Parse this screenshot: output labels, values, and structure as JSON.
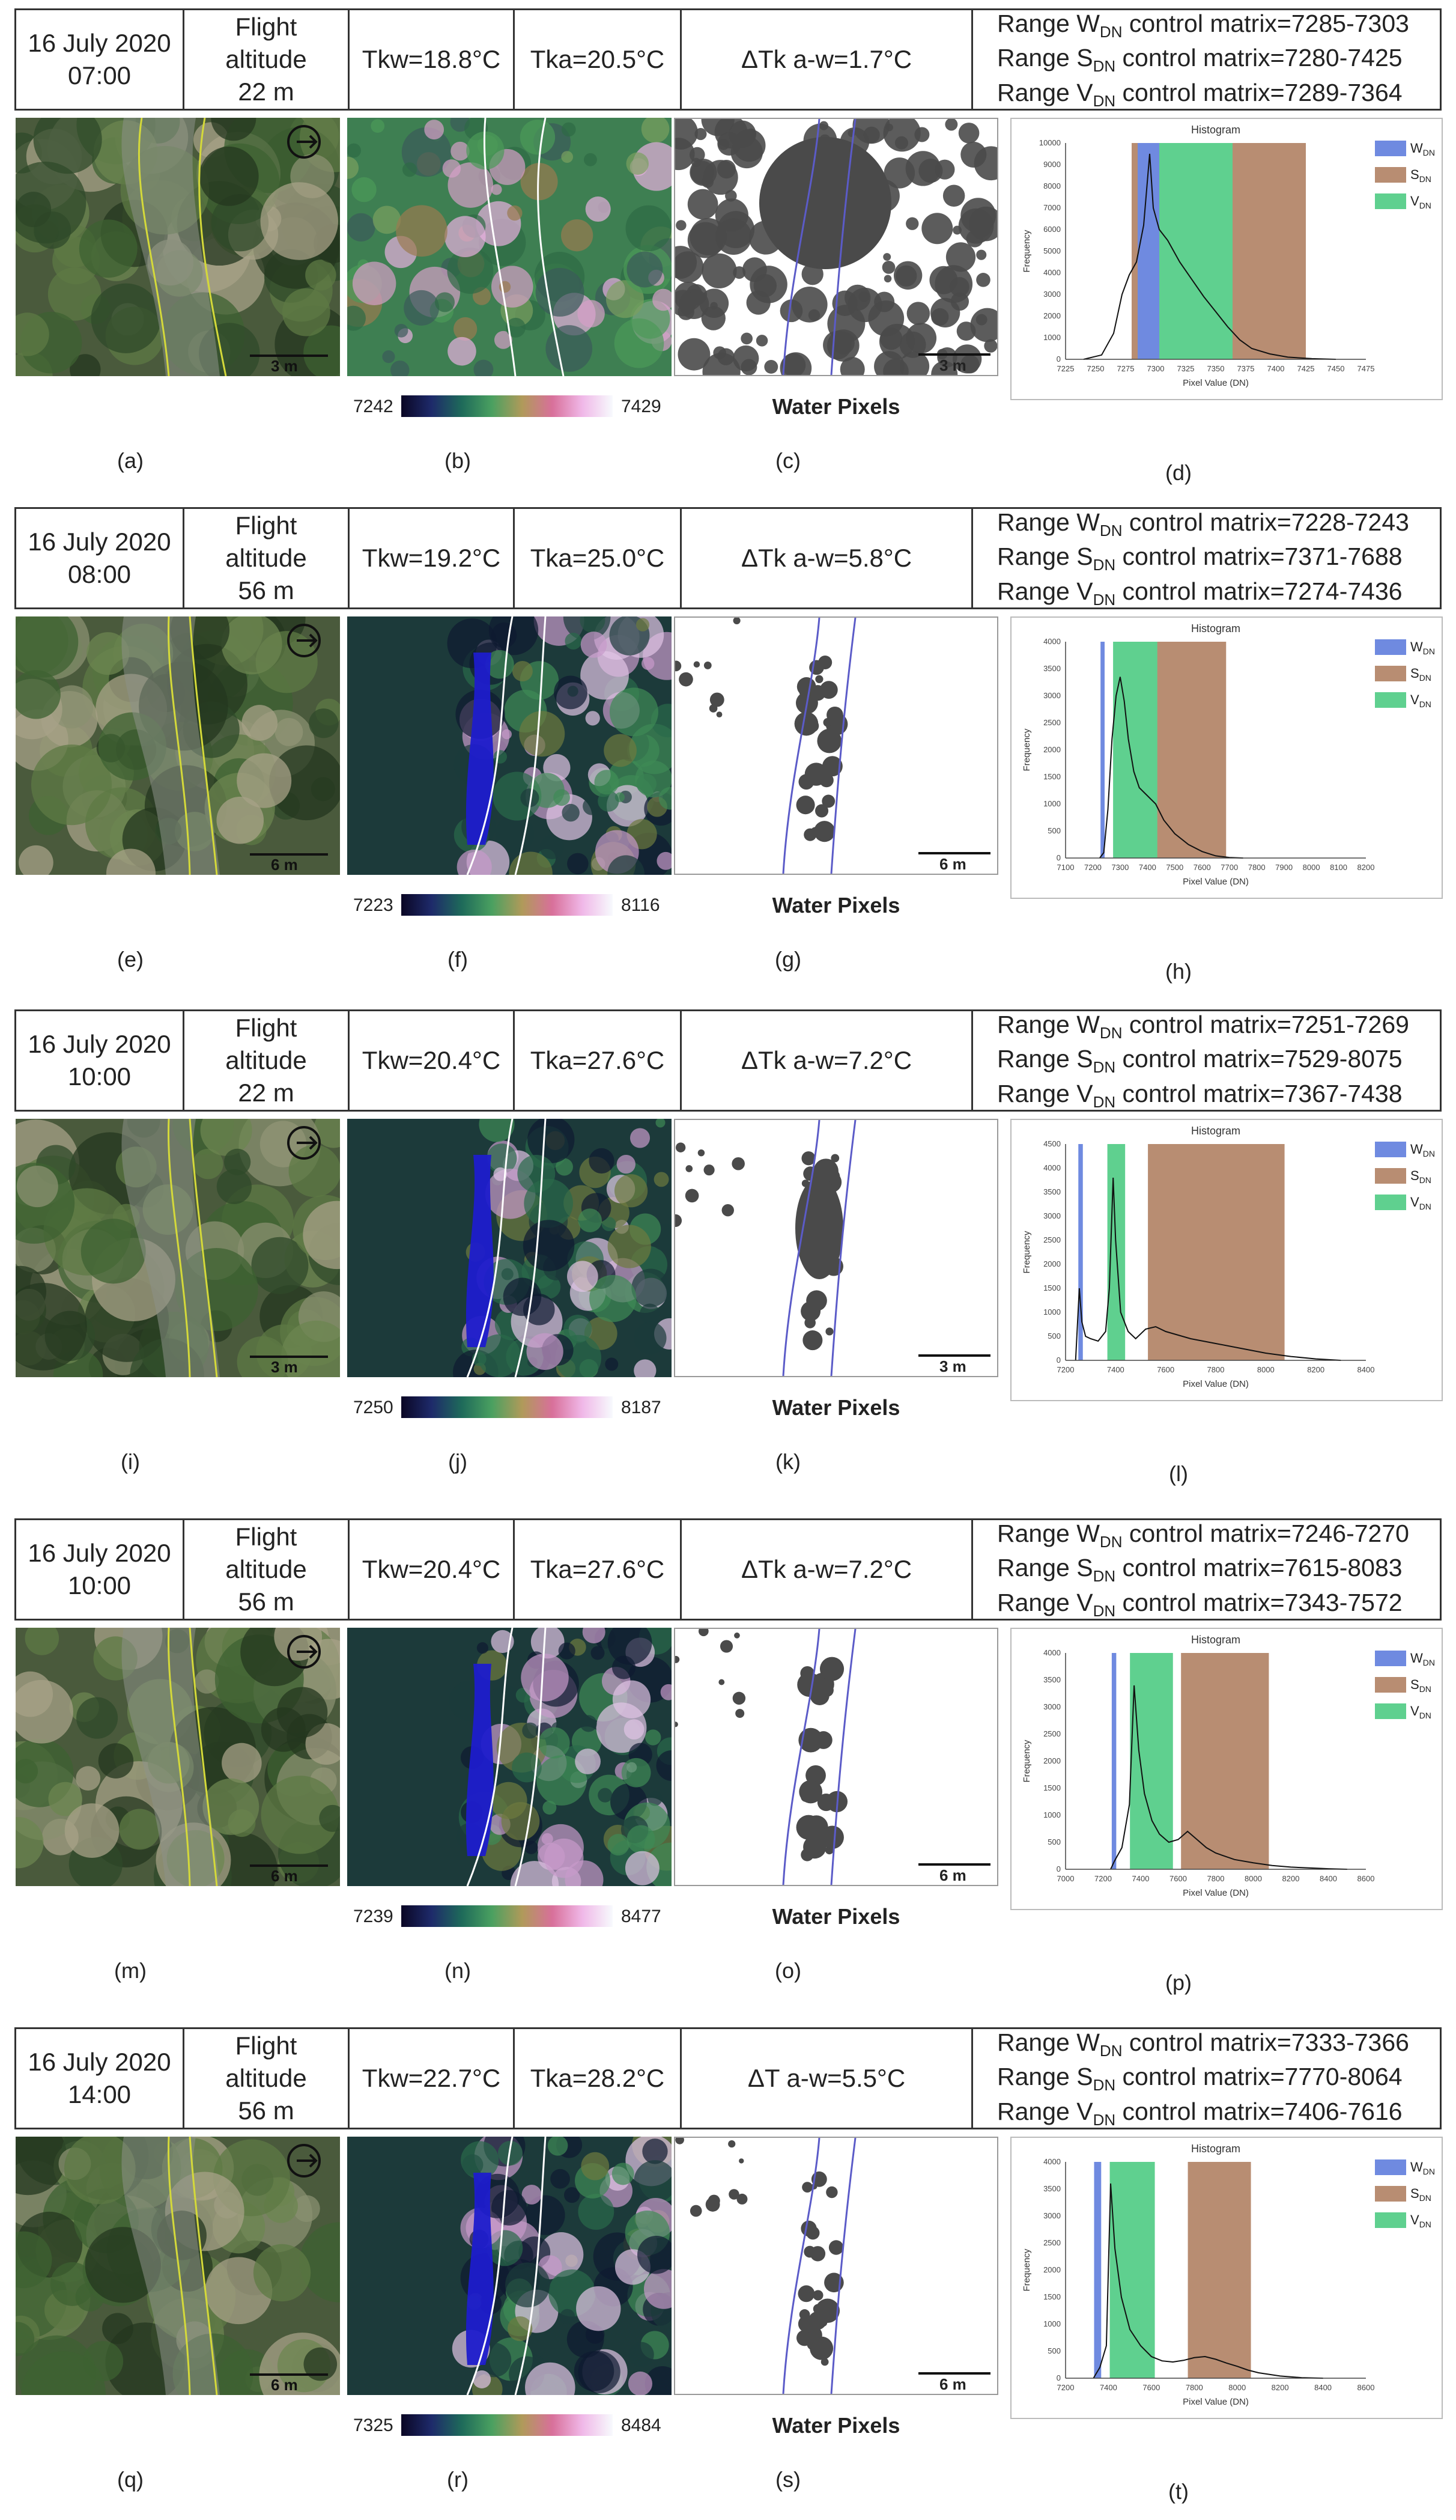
{
  "rows": [
    {
      "date": "16 July 2020",
      "time": "07:00",
      "alt_line1": "Flight",
      "alt_line2": "altitude",
      "alt_line3": "22 m",
      "tkw": "Tkw=18.8°C",
      "tka": "Tka=20.5°C",
      "dt": "ΔTk a-w=1.7°C",
      "ranges": [
        {
          "pre": "Range W",
          "sub": "DN",
          "post": " control matrix=7285-7303"
        },
        {
          "pre": "Range S",
          "sub": "DN",
          "post": " control matrix=7280-7425"
        },
        {
          "pre": "Range V",
          "sub": "DN",
          "post": " control matrix=7289-7364"
        }
      ],
      "cb_min": "7242",
      "cb_max": "7429",
      "water": "Water Pixels",
      "scale": "3 m",
      "caps": [
        "(a)",
        "(b)",
        "(c)",
        "(d)"
      ]
    },
    {
      "date": "16 July 2020",
      "time": "08:00",
      "alt_line1": "Flight",
      "alt_line2": "altitude",
      "alt_line3": "56 m",
      "tkw": "Tkw=19.2°C",
      "tka": "Tka=25.0°C",
      "dt": "ΔTk a-w=5.8°C",
      "ranges": [
        {
          "pre": "Range W",
          "sub": "DN",
          "post": " control matrix=7228-7243"
        },
        {
          "pre": "Range S",
          "sub": "DN",
          "post": " control matrix=7371-7688"
        },
        {
          "pre": "Range V",
          "sub": "DN",
          "post": " control matrix=7274-7436"
        }
      ],
      "cb_min": "7223",
      "cb_max": "8116",
      "water": "Water Pixels",
      "scale": "6 m",
      "caps": [
        "(e)",
        "(f)",
        "(g)",
        "(h)"
      ]
    },
    {
      "date": "16 July 2020",
      "time": "10:00",
      "alt_line1": "Flight",
      "alt_line2": "altitude",
      "alt_line3": "22 m",
      "tkw": "Tkw=20.4°C",
      "tka": "Tka=27.6°C",
      "dt": "ΔTk a-w=7.2°C",
      "ranges": [
        {
          "pre": "Range W",
          "sub": "DN",
          "post": " control matrix=7251-7269"
        },
        {
          "pre": "Range S",
          "sub": "DN",
          "post": " control matrix=7529-8075"
        },
        {
          "pre": "Range V",
          "sub": "DN",
          "post": " control matrix=7367-7438"
        }
      ],
      "cb_min": "7250",
      "cb_max": "8187",
      "water": "Water Pixels",
      "scale": "3 m",
      "caps": [
        "(i)",
        "(j)",
        "(k)",
        "(l)"
      ]
    },
    {
      "date": "16 July 2020",
      "time": "10:00",
      "alt_line1": "Flight",
      "alt_line2": "altitude",
      "alt_line3": "56 m",
      "tkw": "Tkw=20.4°C",
      "tka": "Tka=27.6°C",
      "dt": "ΔTk a-w=7.2°C",
      "ranges": [
        {
          "pre": "Range W",
          "sub": "DN",
          "post": " control matrix=7246-7270"
        },
        {
          "pre": "Range S",
          "sub": "DN",
          "post": " control matrix=7615-8083"
        },
        {
          "pre": "Range V",
          "sub": "DN",
          "post": " control matrix=7343-7572"
        }
      ],
      "cb_min": "7239",
      "cb_max": "8477",
      "water": "Water Pixels",
      "scale": "6 m",
      "caps": [
        "(m)",
        "(n)",
        "(o)",
        "(p)"
      ]
    },
    {
      "date": "16 July 2020",
      "time": "14:00",
      "alt_line1": "Flight",
      "alt_line2": "altitude",
      "alt_line3": "56 m",
      "tkw": "Tkw=22.7°C",
      "tka": "Tka=28.2°C",
      "dt": "ΔT a-w=5.5°C",
      "ranges": [
        {
          "pre": "Range W",
          "sub": "DN",
          "post": " control matrix=7333-7366"
        },
        {
          "pre": "Range S",
          "sub": "DN",
          "post": " control matrix=7770-8064"
        },
        {
          "pre": "Range V",
          "sub": "DN",
          "post": " control matrix=7406-7616"
        }
      ],
      "cb_min": "7325",
      "cb_max": "8484",
      "water": "Water Pixels",
      "scale": "6 m",
      "caps": [
        "(q)",
        "(r)",
        "(s)",
        "(t)"
      ]
    }
  ],
  "chart_data": [
    {
      "type": "area",
      "title": "Histogram",
      "xlabel": "Pixel Value (DN)",
      "ylabel": "Frequency",
      "xlim": [
        7225,
        7475
      ],
      "ylim": [
        0,
        10000
      ],
      "xticks": [
        7225,
        7250,
        7275,
        7300,
        7325,
        7350,
        7375,
        7400,
        7425,
        7450,
        7475
      ],
      "yticks": [
        0,
        1000,
        2000,
        3000,
        4000,
        5000,
        6000,
        7000,
        8000,
        9000,
        10000
      ],
      "legend": [
        "W_DN",
        "S_DN",
        "V_DN"
      ],
      "legend_position": "top-right",
      "ranges": {
        "W": [
          7285,
          7303
        ],
        "S": [
          7280,
          7425
        ],
        "V": [
          7289,
          7364
        ]
      },
      "curve": [
        [
          7240,
          0
        ],
        [
          7255,
          200
        ],
        [
          7265,
          1200
        ],
        [
          7272,
          3000
        ],
        [
          7278,
          3900
        ],
        [
          7284,
          4500
        ],
        [
          7290,
          6200
        ],
        [
          7295,
          9500
        ],
        [
          7298,
          7000
        ],
        [
          7303,
          6000
        ],
        [
          7310,
          5500
        ],
        [
          7320,
          4500
        ],
        [
          7330,
          3700
        ],
        [
          7340,
          2900
        ],
        [
          7350,
          2200
        ],
        [
          7360,
          1500
        ],
        [
          7370,
          900
        ],
        [
          7380,
          500
        ],
        [
          7395,
          250
        ],
        [
          7410,
          100
        ],
        [
          7430,
          30
        ],
        [
          7450,
          0
        ]
      ]
    },
    {
      "type": "area",
      "title": "Histogram",
      "xlabel": "Pixel Value (DN)",
      "ylabel": "Frequency",
      "xlim": [
        7100,
        8200
      ],
      "ylim": [
        0,
        4000
      ],
      "xticks": [
        7100,
        7200,
        7300,
        7400,
        7500,
        7600,
        7700,
        7800,
        7900,
        8000,
        8100,
        8200
      ],
      "yticks": [
        0,
        500,
        1000,
        1500,
        2000,
        2500,
        3000,
        3500,
        4000
      ],
      "legend": [
        "W_DN",
        "S_DN",
        "V_DN"
      ],
      "legend_position": "top-right",
      "ranges": {
        "W": [
          7228,
          7243
        ],
        "S": [
          7371,
          7688
        ],
        "V": [
          7274,
          7436
        ]
      },
      "curve": [
        [
          7225,
          0
        ],
        [
          7240,
          100
        ],
        [
          7255,
          900
        ],
        [
          7270,
          2200
        ],
        [
          7285,
          3000
        ],
        [
          7300,
          3350
        ],
        [
          7315,
          2900
        ],
        [
          7330,
          2200
        ],
        [
          7350,
          1600
        ],
        [
          7370,
          1300
        ],
        [
          7400,
          1150
        ],
        [
          7430,
          1000
        ],
        [
          7460,
          700
        ],
        [
          7500,
          450
        ],
        [
          7550,
          250
        ],
        [
          7600,
          120
        ],
        [
          7650,
          40
        ],
        [
          7700,
          10
        ],
        [
          7750,
          0
        ]
      ]
    },
    {
      "type": "area",
      "title": "Histogram",
      "xlabel": "Pixel Value (DN)",
      "ylabel": "Frequency",
      "xlim": [
        7200,
        8400
      ],
      "ylim": [
        0,
        4500
      ],
      "xticks": [
        7200,
        7400,
        7600,
        7800,
        8000,
        8200,
        8400
      ],
      "yticks": [
        0,
        500,
        1000,
        1500,
        2000,
        2500,
        3000,
        3500,
        4000,
        4500
      ],
      "legend": [
        "W_DN",
        "S_DN",
        "V_DN"
      ],
      "legend_position": "top-right",
      "ranges": {
        "W": [
          7251,
          7269
        ],
        "S": [
          7529,
          8075
        ],
        "V": [
          7367,
          7438
        ]
      },
      "curve": [
        [
          7240,
          0
        ],
        [
          7255,
          1500
        ],
        [
          7265,
          800
        ],
        [
          7280,
          500
        ],
        [
          7300,
          450
        ],
        [
          7330,
          400
        ],
        [
          7360,
          600
        ],
        [
          7375,
          1500
        ],
        [
          7390,
          3800
        ],
        [
          7400,
          2500
        ],
        [
          7420,
          1000
        ],
        [
          7450,
          600
        ],
        [
          7480,
          450
        ],
        [
          7520,
          650
        ],
        [
          7560,
          700
        ],
        [
          7600,
          600
        ],
        [
          7700,
          450
        ],
        [
          7800,
          350
        ],
        [
          7900,
          250
        ],
        [
          8000,
          150
        ],
        [
          8100,
          80
        ],
        [
          8200,
          30
        ],
        [
          8300,
          0
        ]
      ]
    },
    {
      "type": "area",
      "title": "Histogram",
      "xlabel": "Pixel Value (DN)",
      "ylabel": "Frequency",
      "xlim": [
        7000,
        8600
      ],
      "ylim": [
        0,
        4000
      ],
      "xticks": [
        7000,
        7200,
        7400,
        7600,
        7800,
        8000,
        8200,
        8400,
        8600
      ],
      "yticks": [
        0,
        500,
        1000,
        1500,
        2000,
        2500,
        3000,
        3500,
        4000
      ],
      "legend": [
        "W_DN",
        "S_DN",
        "V_DN"
      ],
      "legend_position": "top-right",
      "ranges": {
        "W": [
          7246,
          7270
        ],
        "S": [
          7615,
          8083
        ],
        "V": [
          7343,
          7572
        ]
      },
      "curve": [
        [
          7240,
          0
        ],
        [
          7260,
          150
        ],
        [
          7300,
          400
        ],
        [
          7340,
          1200
        ],
        [
          7365,
          3400
        ],
        [
          7390,
          2200
        ],
        [
          7420,
          1400
        ],
        [
          7460,
          900
        ],
        [
          7500,
          650
        ],
        [
          7550,
          500
        ],
        [
          7600,
          550
        ],
        [
          7650,
          700
        ],
        [
          7700,
          550
        ],
        [
          7750,
          400
        ],
        [
          7800,
          300
        ],
        [
          7900,
          180
        ],
        [
          8000,
          120
        ],
        [
          8100,
          70
        ],
        [
          8200,
          40
        ],
        [
          8400,
          10
        ],
        [
          8500,
          0
        ]
      ]
    },
    {
      "type": "area",
      "title": "Histogram",
      "xlabel": "Pixel Value (DN)",
      "ylabel": "Frequency",
      "xlim": [
        7200,
        8600
      ],
      "ylim": [
        0,
        4000
      ],
      "xticks": [
        7200,
        7400,
        7600,
        7800,
        8000,
        8200,
        8400,
        8600
      ],
      "yticks": [
        0,
        500,
        1000,
        1500,
        2000,
        2500,
        3000,
        3500,
        4000
      ],
      "legend": [
        "W_DN",
        "S_DN",
        "V_DN"
      ],
      "legend_position": "top-right",
      "ranges": {
        "W": [
          7333,
          7366
        ],
        "S": [
          7770,
          8064
        ],
        "V": [
          7406,
          7616
        ]
      },
      "curve": [
        [
          7330,
          0
        ],
        [
          7360,
          200
        ],
        [
          7390,
          600
        ],
        [
          7410,
          3600
        ],
        [
          7430,
          2400
        ],
        [
          7460,
          1500
        ],
        [
          7500,
          900
        ],
        [
          7550,
          600
        ],
        [
          7600,
          400
        ],
        [
          7650,
          320
        ],
        [
          7700,
          300
        ],
        [
          7750,
          330
        ],
        [
          7800,
          380
        ],
        [
          7850,
          400
        ],
        [
          7900,
          350
        ],
        [
          7950,
          280
        ],
        [
          8000,
          220
        ],
        [
          8050,
          150
        ],
        [
          8100,
          100
        ],
        [
          8200,
          40
        ],
        [
          8300,
          10
        ],
        [
          8400,
          0
        ]
      ]
    }
  ],
  "colors": {
    "W": "#6f8ae0",
    "S": "#b88d72",
    "V": "#5fd08f",
    "river_rgb": "#d4d93a",
    "river_th": "#ffffff",
    "river_wp": "#5b5bc8"
  }
}
